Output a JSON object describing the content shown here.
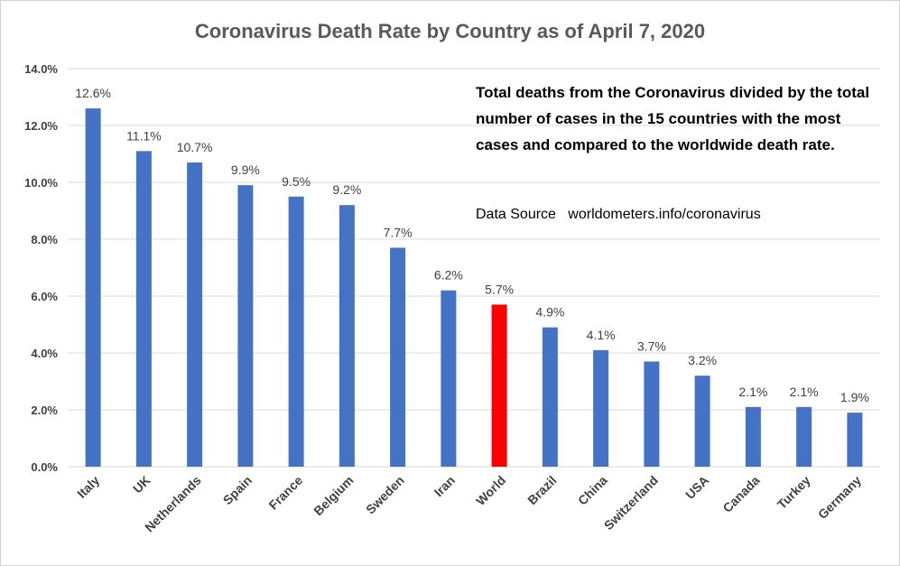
{
  "chart_data": {
    "type": "bar",
    "title": "Coronavirus Death Rate by Country as of April 7, 2020",
    "annotation": "Total deaths from the Coronavirus divided by the total number of cases in the 15 countries with the most cases and compared to the worldwide death rate.",
    "source_label": "Data Source",
    "source_value": "worldometers.info/coronavirus",
    "categories": [
      "Italy",
      "UK",
      "Netherlands",
      "Spain",
      "France",
      "Belgium",
      "Sweden",
      "Iran",
      "World",
      "Brazil",
      "China",
      "Switzerland",
      "USA",
      "Canada",
      "Turkey",
      "Germany"
    ],
    "values": [
      12.6,
      11.1,
      10.7,
      9.9,
      9.5,
      9.2,
      7.7,
      6.2,
      5.7,
      4.9,
      4.1,
      3.7,
      3.2,
      2.1,
      2.1,
      1.9
    ],
    "data_labels": [
      "12.6%",
      "11.1%",
      "10.7%",
      "9.9%",
      "9.5%",
      "9.2%",
      "7.7%",
      "6.2%",
      "5.7%",
      "4.9%",
      "4.1%",
      "3.7%",
      "3.2%",
      "2.1%",
      "2.1%",
      "1.9%"
    ],
    "y_ticks": [
      "0.0%",
      "2.0%",
      "4.0%",
      "6.0%",
      "8.0%",
      "10.0%",
      "12.0%",
      "14.0%"
    ],
    "ylim": [
      0,
      14
    ],
    "grid": true,
    "legend": "none",
    "colors": {
      "bar": "#4472C4",
      "highlight": "#FF0000",
      "highlight_category": "World",
      "grid": "#D9D9D9",
      "text": "#404040"
    }
  }
}
